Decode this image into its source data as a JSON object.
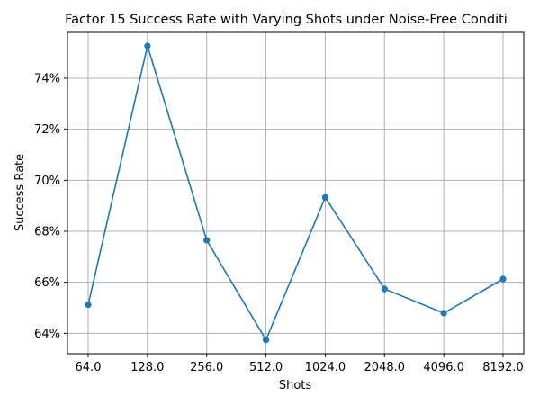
{
  "chart_data": {
    "type": "line",
    "title": "Factor 15 Success Rate with Varying Shots under Noise-Free Conditi",
    "xlabel": "Shots",
    "ylabel": "Success Rate",
    "categories": [
      "64.0",
      "128.0",
      "256.0",
      "512.0",
      "1024.0",
      "2048.0",
      "4096.0",
      "8192.0"
    ],
    "series": [
      {
        "values": [
          65.12,
          75.27,
          67.65,
          63.74,
          69.33,
          65.74,
          64.79,
          66.13
        ]
      }
    ],
    "y_ticks": [
      64,
      66,
      68,
      70,
      72,
      74
    ],
    "y_tick_labels": [
      "64%",
      "66%",
      "68%",
      "70%",
      "72%",
      "74%"
    ],
    "ylim": [
      63.2,
      75.8
    ],
    "grid": true,
    "legend": "none",
    "color": "#1f77b4"
  }
}
